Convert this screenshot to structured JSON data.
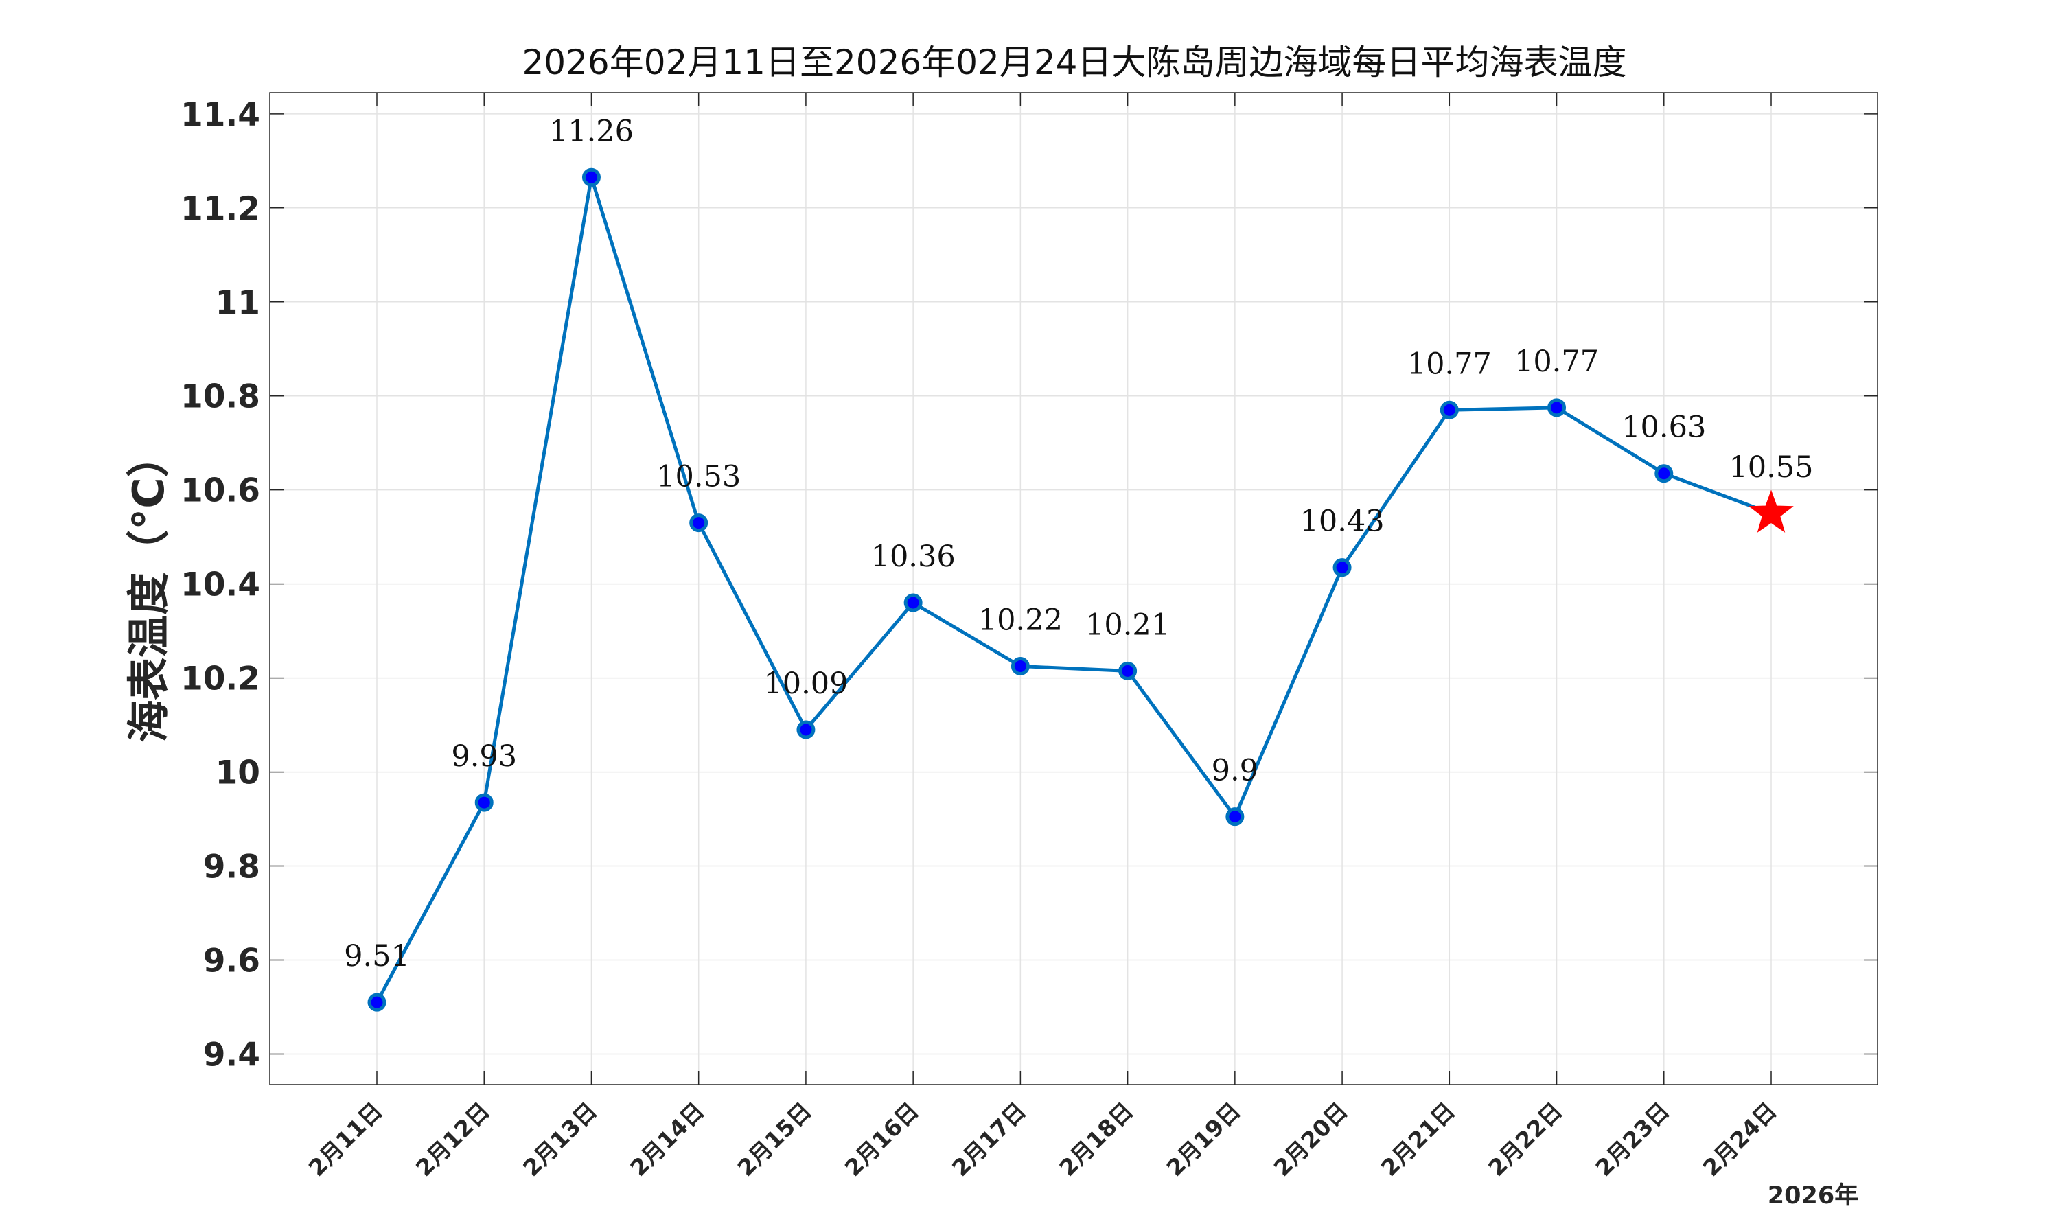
{
  "chart_data": {
    "type": "line",
    "title": "2026年02月11日至2026年02月24日大陈岛周边海域每日平均海表温度",
    "ylabel": "海表温度（°C）",
    "xlabel": "",
    "year_label": "2026年",
    "categories": [
      "2月11日",
      "2月12日",
      "2月13日",
      "2月14日",
      "2月15日",
      "2月16日",
      "2月17日",
      "2月18日",
      "2月19日",
      "2月20日",
      "2月21日",
      "2月22日",
      "2月23日",
      "2月24日"
    ],
    "series": [
      {
        "values": [
          9.51,
          9.935,
          11.265,
          10.53,
          10.09,
          10.36,
          10.225,
          10.215,
          9.905,
          10.435,
          10.77,
          10.775,
          10.635,
          10.55
        ],
        "point_labels": [
          "9.51",
          "9.93",
          "11.26",
          "10.53",
          "10.09",
          "10.36",
          "10.22",
          "10.21",
          "9.9",
          "10.43",
          "10.77",
          "10.77",
          "10.63",
          "10.55"
        ],
        "line_color": "#0072BD",
        "marker_color": "#0000FF",
        "highlight_last_marker": "star",
        "highlight_color": "#FF0000"
      }
    ],
    "ylim": [
      9.335,
      11.445
    ],
    "yticks": [
      9.4,
      9.6,
      9.8,
      10,
      10.2,
      10.4,
      10.6,
      10.8,
      11,
      11.2,
      11.4
    ],
    "ytick_labels": [
      "9.4",
      "9.6",
      "9.8",
      "10",
      "10.2",
      "10.4",
      "10.6",
      "10.8",
      "11",
      "11.2",
      "11.4"
    ],
    "grid": true
  }
}
